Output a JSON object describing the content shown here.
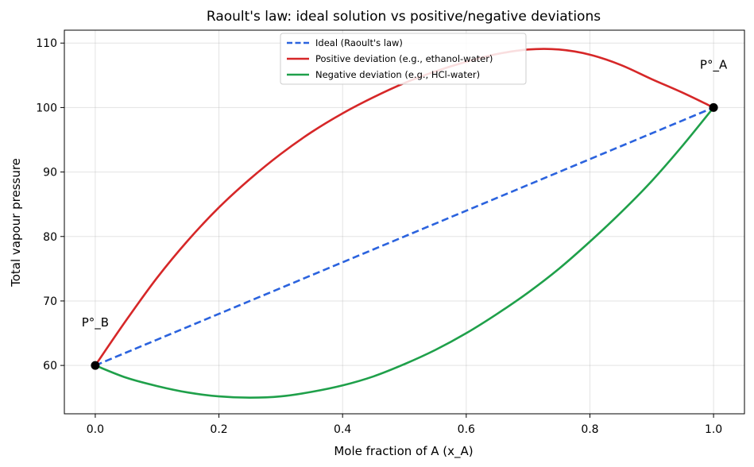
{
  "chart_data": {
    "type": "line",
    "title": "Raoult's law: ideal solution vs positive/negative deviations",
    "xlabel": "Mole fraction of A (x_A)",
    "ylabel": "Total vapour pressure",
    "xlim": [
      -0.05,
      1.05
    ],
    "ylim": [
      52.5,
      112
    ],
    "xticks": [
      "0.0",
      "0.2",
      "0.4",
      "0.6",
      "0.8",
      "1.0"
    ],
    "xtick_values": [
      0.0,
      0.2,
      0.4,
      0.6,
      0.8,
      1.0
    ],
    "yticks": [
      "60",
      "70",
      "80",
      "90",
      "100",
      "110"
    ],
    "ytick_values": [
      60,
      70,
      80,
      90,
      100,
      110
    ],
    "grid": true,
    "legend_position": "upper-center",
    "x": [
      0.0,
      0.05,
      0.1,
      0.15,
      0.2,
      0.25,
      0.3,
      0.35,
      0.4,
      0.45,
      0.5,
      0.55,
      0.6,
      0.65,
      0.7,
      0.75,
      0.8,
      0.85,
      0.9,
      0.95,
      1.0
    ],
    "series": [
      {
        "name": "Ideal (Raoult's law)",
        "color": "#2b63de",
        "style": "dashed",
        "values": [
          60,
          62,
          64,
          66,
          68,
          70,
          72,
          74,
          76,
          78,
          80,
          82,
          84,
          86,
          88,
          90,
          92,
          94,
          96,
          98,
          100
        ]
      },
      {
        "name": "Positive deviation (e.g., ethanol-water)",
        "color": "#d62728",
        "style": "solid",
        "values": [
          60.0,
          67.0,
          73.6,
          79.4,
          84.5,
          88.9,
          92.8,
          96.2,
          99.1,
          101.6,
          103.8,
          105.6,
          107.1,
          108.3,
          109.0,
          109.0,
          108.2,
          106.6,
          104.4,
          102.3,
          100.0
        ]
      },
      {
        "name": "Negative deviation (e.g., HCl-water)",
        "color": "#1fa04a",
        "style": "solid",
        "values": [
          60.0,
          58.1,
          56.8,
          55.8,
          55.2,
          55.0,
          55.2,
          55.9,
          56.9,
          58.3,
          60.2,
          62.4,
          65.0,
          68.0,
          71.3,
          75.0,
          79.2,
          83.7,
          88.6,
          94.1,
          100.0
        ]
      }
    ],
    "points": [
      {
        "x": 0.0,
        "y": 60,
        "label": "P°_B"
      },
      {
        "x": 1.0,
        "y": 100,
        "label": "P°_A"
      }
    ]
  }
}
